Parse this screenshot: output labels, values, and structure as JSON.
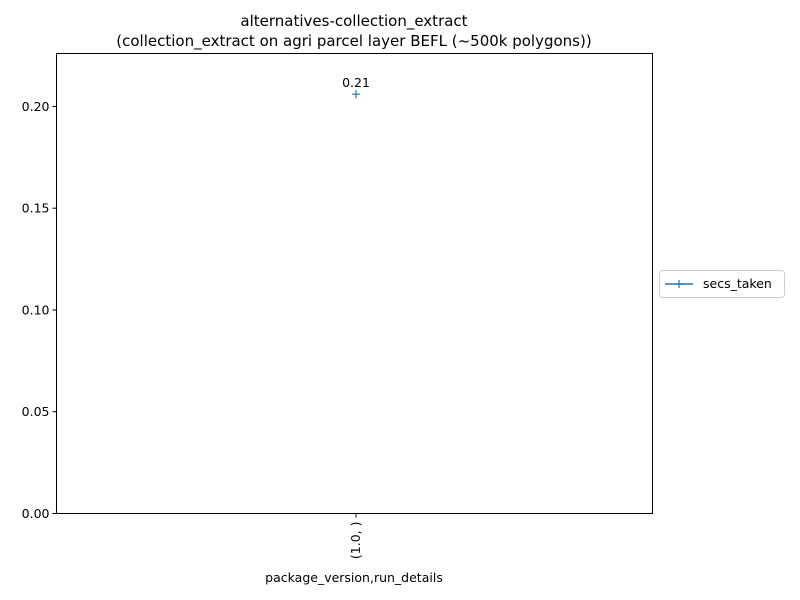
{
  "chart_data": {
    "type": "line",
    "title": "alternatives-collection_extract",
    "subtitle": "(collection_extract on agri parcel layer BEFL (~500k polygons))",
    "xlabel": "package_version,run_details",
    "ylabel": "",
    "categories": [
      "(1.0, )"
    ],
    "series": [
      {
        "name": "secs_taken",
        "values": [
          0.206
        ],
        "labels": [
          "0.21"
        ],
        "color": "#1f77b4",
        "marker": "plus"
      }
    ],
    "ylim": [
      0,
      0.226
    ],
    "yticks": [
      0.0,
      0.05,
      0.1,
      0.15,
      0.2
    ],
    "ytick_labels": [
      "0.00",
      "0.05",
      "0.10",
      "0.15",
      "0.20"
    ],
    "x_tick_rotation": 90,
    "grid": false,
    "legend_position": "right-outside"
  }
}
